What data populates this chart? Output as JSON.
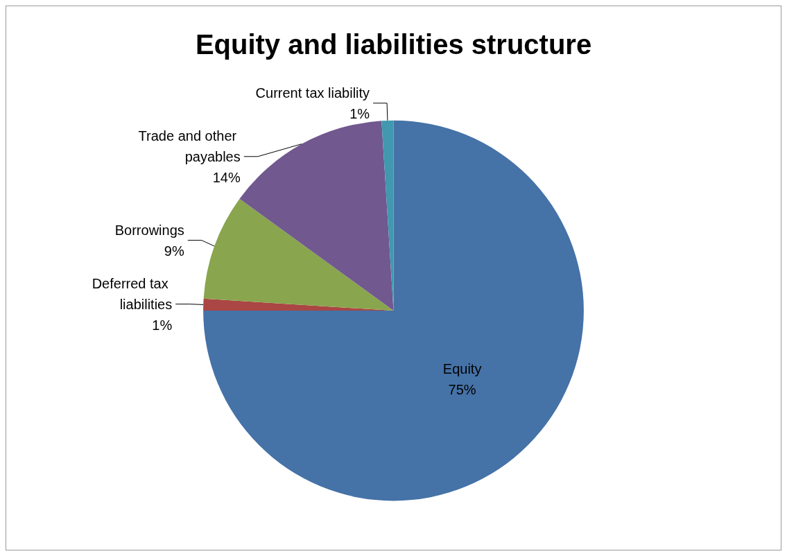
{
  "chart_data": {
    "type": "pie",
    "title": "Equity and liabilities structure",
    "categories": [
      "Equity",
      "Deferred tax liabilities",
      "Borrowings",
      "Trade and other payables",
      "Current tax liability"
    ],
    "values": [
      75,
      1,
      9,
      14,
      1
    ],
    "value_labels": [
      "75%",
      "1%",
      "9%",
      "14%",
      "1%"
    ],
    "colors": [
      "#4572a7",
      "#aa4643",
      "#89a54e",
      "#71588f",
      "#4198af"
    ],
    "legend": false
  }
}
